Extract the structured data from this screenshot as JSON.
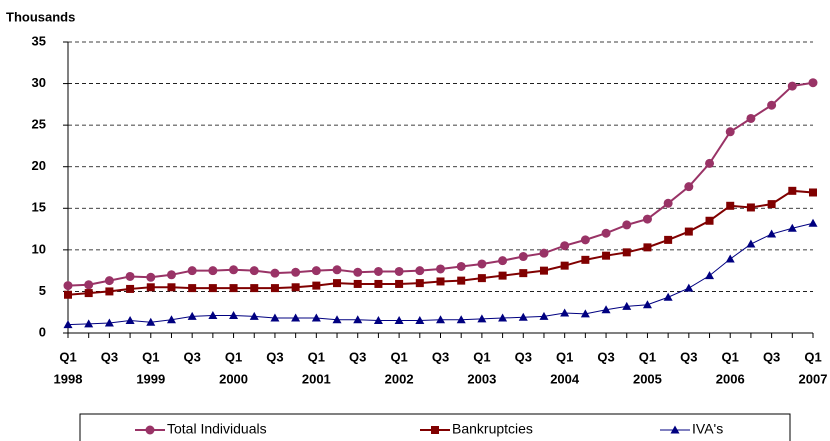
{
  "chart_data": {
    "type": "line",
    "y_axis_label": "Thousands",
    "categories": [
      "Q1",
      null,
      "Q3",
      null,
      "Q1",
      null,
      "Q3",
      null,
      "Q1",
      null,
      "Q3",
      null,
      "Q1",
      null,
      "Q3",
      null,
      "Q1",
      null,
      "Q3",
      null,
      "Q1",
      null,
      "Q3",
      null,
      "Q1",
      null,
      "Q3",
      null,
      "Q1",
      null,
      "Q3",
      null,
      "Q1",
      null,
      "Q3",
      null,
      "Q1"
    ],
    "years": [
      "1998",
      null,
      null,
      null,
      "1999",
      null,
      null,
      null,
      "2000",
      null,
      null,
      null,
      "2001",
      null,
      null,
      null,
      "2002",
      null,
      null,
      null,
      "2003",
      null,
      null,
      null,
      "2004",
      null,
      null,
      null,
      "2005",
      null,
      null,
      null,
      "2006",
      null,
      null,
      null,
      "2007"
    ],
    "series": [
      {
        "name": "Total Individuals",
        "color": "#993366",
        "marker": "circle",
        "values": [
          5.7,
          5.8,
          6.3,
          6.8,
          6.7,
          7.0,
          7.5,
          7.5,
          7.6,
          7.5,
          7.2,
          7.3,
          7.5,
          7.6,
          7.3,
          7.4,
          7.4,
          7.5,
          7.7,
          8.0,
          8.3,
          8.7,
          9.2,
          9.6,
          10.5,
          11.2,
          12.0,
          13.0,
          13.7,
          15.6,
          17.6,
          20.4,
          24.2,
          25.8,
          27.4,
          29.7,
          30.1
        ]
      },
      {
        "name": "Bankruptcies",
        "color": "#800000",
        "marker": "square",
        "values": [
          4.6,
          4.8,
          5.0,
          5.3,
          5.5,
          5.5,
          5.4,
          5.4,
          5.4,
          5.4,
          5.4,
          5.5,
          5.7,
          6.0,
          5.9,
          5.9,
          5.9,
          6.0,
          6.2,
          6.3,
          6.6,
          6.9,
          7.2,
          7.5,
          8.1,
          8.8,
          9.3,
          9.7,
          10.3,
          11.2,
          12.2,
          13.5,
          15.3,
          15.1,
          15.5,
          17.1,
          16.9
        ]
      },
      {
        "name": "IVA's",
        "color": "#000080",
        "marker": "triangle",
        "values": [
          1.0,
          1.1,
          1.2,
          1.5,
          1.3,
          1.6,
          2.0,
          2.1,
          2.1,
          2.0,
          1.8,
          1.8,
          1.8,
          1.6,
          1.6,
          1.5,
          1.5,
          1.5,
          1.6,
          1.6,
          1.7,
          1.8,
          1.9,
          2.0,
          2.4,
          2.3,
          2.8,
          3.2,
          3.4,
          4.3,
          5.4,
          6.9,
          8.9,
          10.7,
          11.9,
          12.6,
          13.2
        ]
      }
    ],
    "ylim": [
      0,
      35
    ],
    "yticks": [
      0,
      5,
      10,
      15,
      20,
      25,
      30,
      35
    ],
    "grid": true,
    "legend": "bottom"
  }
}
